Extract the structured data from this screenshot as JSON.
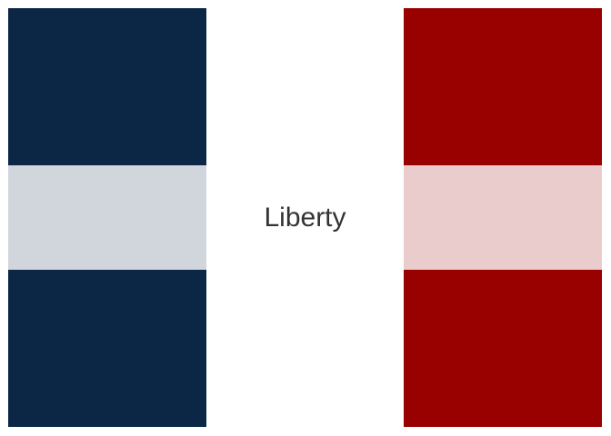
{
  "center": {
    "label": "Liberty"
  },
  "colors": {
    "left_outer": "#0b2745",
    "left_middle": "#d1d6dd",
    "right_outer": "#990000",
    "right_middle": "#ebcccc",
    "center_background": "#ffffff",
    "label_text": "#333333"
  }
}
